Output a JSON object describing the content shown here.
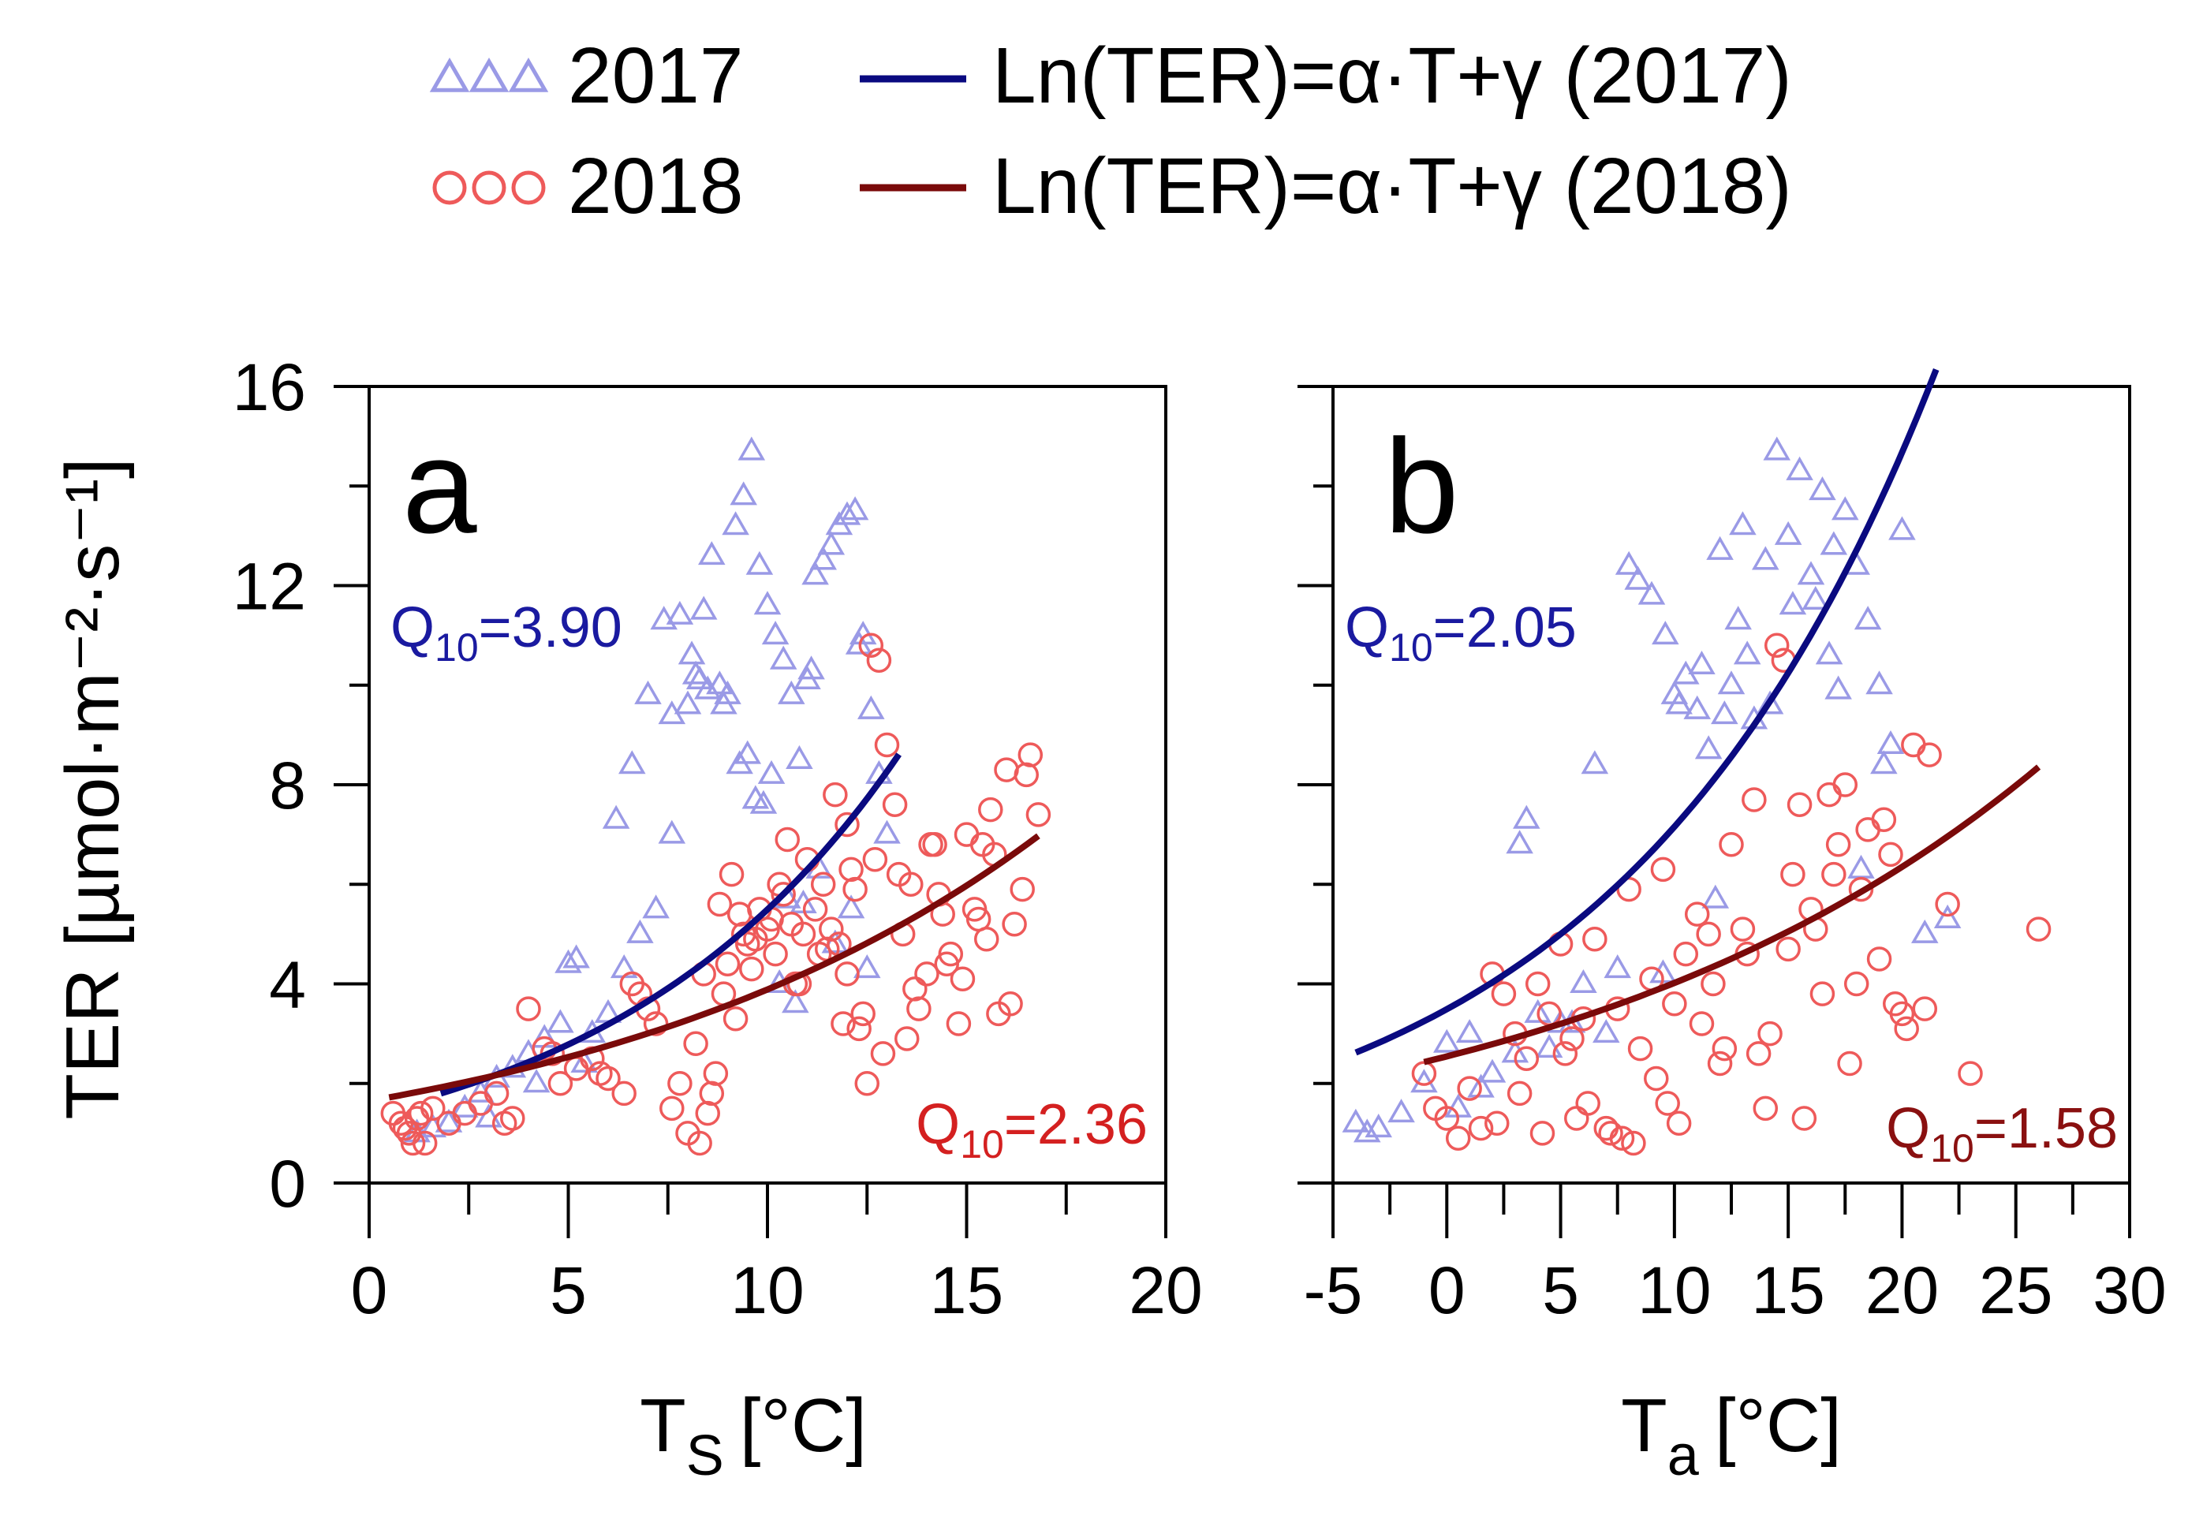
{
  "legend": {
    "items": [
      {
        "marker": "triangle",
        "label": "2017",
        "color": "#9a9ae6"
      },
      {
        "marker": "line",
        "label": "Ln(TER)=α·T+γ (2017)",
        "color": "#0a0a80"
      },
      {
        "marker": "circle",
        "label": "2018",
        "color": "#ee5a5a"
      },
      {
        "marker": "line",
        "label": "Ln(TER)=α·T+γ (2018)",
        "color": "#7a0a0a"
      }
    ]
  },
  "chart_data": [
    {
      "type": "scatter",
      "panel": "a",
      "xlabel": {
        "main": "T",
        "sub": "S",
        "unit": "[°C]"
      },
      "ylabel": "TER [µmol·m⁻²·s⁻¹]",
      "xlim": [
        0,
        20
      ],
      "ylim": [
        0,
        16
      ],
      "xticks": [
        "0",
        "5",
        "10",
        "15",
        "20"
      ],
      "yticks": [
        "0",
        "4",
        "8",
        "12",
        "16"
      ],
      "q10_labels": [
        {
          "main": "Q",
          "sub": "10",
          "value": "=3.90",
          "color": "#1a1aa0"
        },
        {
          "main": "Q",
          "sub": "10",
          "value": "=2.36",
          "color": "#d42020"
        }
      ],
      "series": [
        {
          "name": "2017",
          "marker": "triangle",
          "color": "#9a9ae6",
          "x": [
            1.2,
            1.6,
            2.0,
            2.4,
            2.8,
            3.2,
            3.6,
            4.0,
            4.4,
            4.8,
            5.2,
            5.6,
            6.0,
            6.4,
            6.8,
            7.2,
            7.6,
            8.0,
            8.2,
            8.4,
            8.6,
            8.8,
            9.0,
            9.2,
            9.4,
            9.6,
            9.8,
            10.0,
            10.2,
            10.4,
            10.6,
            10.8,
            11.0,
            11.2,
            11.4,
            11.6,
            11.8,
            12.0,
            12.2,
            12.4,
            12.6,
            12.8,
            13.0,
            5.0,
            6.2,
            6.6,
            7.0,
            7.4,
            7.8,
            8.1,
            8.5,
            8.9,
            9.3,
            9.7,
            10.1,
            10.5,
            10.9,
            11.3,
            11.7,
            12.1,
            12.5,
            9.5,
            9.9,
            10.3,
            10.7,
            11.1,
            12.3,
            7.6,
            8.3,
            3.0,
            4.2,
            5.4
          ],
          "y": [
            1.0,
            1.1,
            1.2,
            1.5,
            1.8,
            2.1,
            2.3,
            2.6,
            2.9,
            3.2,
            4.5,
            3.0,
            3.4,
            4.3,
            5.0,
            5.5,
            7.0,
            9.6,
            10.2,
            11.5,
            12.6,
            10.0,
            9.8,
            13.2,
            13.8,
            14.7,
            12.4,
            11.6,
            11.0,
            10.5,
            9.8,
            8.5,
            10.1,
            12.2,
            12.5,
            12.8,
            13.2,
            13.4,
            13.5,
            11.0,
            9.5,
            8.2,
            7.0,
            4.4,
            7.3,
            8.4,
            9.8,
            11.3,
            11.4,
            10.6,
            9.9,
            9.6,
            8.4,
            7.7,
            8.2,
            5.7,
            5.6,
            6.3,
            4.8,
            5.5,
            4.3,
            8.6,
            7.6,
            4.0,
            3.6,
            10.3,
            10.8,
            9.4,
            10.1,
            1.3,
            2.0,
            2.4
          ]
        },
        {
          "name": "2018",
          "marker": "circle",
          "color": "#ee5a5a",
          "x": [
            0.6,
            0.8,
            1.0,
            1.2,
            1.4,
            1.6,
            2.0,
            2.4,
            2.8,
            3.2,
            3.6,
            4.0,
            4.4,
            4.8,
            5.2,
            5.6,
            6.0,
            6.4,
            6.8,
            7.2,
            7.6,
            8.0,
            8.2,
            8.4,
            8.6,
            8.8,
            9.0,
            9.2,
            9.4,
            9.6,
            9.8,
            10.0,
            10.2,
            10.4,
            10.6,
            10.8,
            11.0,
            11.2,
            11.4,
            11.6,
            11.8,
            12.0,
            12.2,
            12.4,
            12.6,
            12.8,
            13.0,
            13.2,
            13.4,
            13.6,
            13.8,
            14.0,
            14.2,
            14.4,
            14.6,
            14.8,
            15.0,
            15.2,
            15.4,
            15.6,
            15.8,
            16.0,
            16.2,
            16.4,
            16.6,
            16.8,
            0.9,
            1.1,
            1.3,
            3.4,
            4.6,
            5.8,
            6.6,
            7.0,
            7.8,
            8.5,
            8.7,
            8.9,
            9.1,
            9.3,
            9.7,
            10.1,
            10.5,
            10.9,
            11.3,
            11.7,
            12.1,
            12.5,
            12.9,
            13.3,
            13.7,
            14.1,
            14.5,
            14.9,
            15.3,
            15.7,
            16.1,
            16.5,
            10.3,
            10.7,
            11.5,
            12.3,
            12.7,
            13.5,
            14.3,
            15.5,
            8.3,
            9.5,
            11.9,
            12.0
          ],
          "y": [
            1.4,
            1.2,
            1.0,
            1.3,
            0.8,
            1.5,
            1.2,
            1.4,
            1.6,
            1.8,
            1.3,
            3.5,
            2.7,
            2.0,
            2.3,
            2.5,
            2.1,
            1.8,
            3.8,
            3.2,
            1.5,
            1.0,
            2.8,
            4.2,
            1.8,
            5.6,
            4.4,
            3.3,
            5.0,
            4.3,
            5.5,
            5.1,
            4.6,
            5.8,
            5.2,
            4.0,
            6.5,
            5.5,
            6.0,
            5.1,
            4.8,
            7.2,
            5.9,
            3.4,
            10.8,
            10.5,
            8.8,
            7.6,
            5.0,
            6.0,
            3.5,
            4.2,
            6.8,
            5.4,
            4.6,
            3.2,
            7.0,
            5.5,
            6.8,
            7.5,
            3.4,
            8.3,
            5.2,
            5.9,
            8.6,
            7.4,
            1.1,
            0.8,
            1.4,
            1.2,
            2.6,
            2.2,
            4.0,
            3.5,
            2.0,
            1.4,
            2.2,
            3.8,
            6.2,
            5.4,
            4.9,
            5.3,
            6.9,
            5.0,
            4.6,
            7.8,
            6.3,
            2.0,
            2.6,
            6.2,
            3.9,
            6.8,
            4.4,
            4.1,
            5.3,
            6.6,
            3.6,
            8.2,
            6.0,
            4.0,
            4.7,
            3.1,
            6.5,
            2.9,
            5.8,
            4.9,
            0.8,
            4.8,
            3.2,
            4.2
          ]
        },
        {
          "name": "Ln(TER)=α·T+γ (2017)",
          "type": "line",
          "color": "#0a0a80",
          "fit": {
            "a": 1.8,
            "q10": 3.9,
            "x0": 1.8,
            "x1": 13.3
          }
        },
        {
          "name": "Ln(TER)=α·T+γ (2018)",
          "type": "line",
          "color": "#7a0a0a",
          "fit": {
            "a": 1.72,
            "q10": 2.36,
            "x0": 0.5,
            "x1": 16.8
          }
        }
      ]
    },
    {
      "type": "scatter",
      "panel": "b",
      "xlabel": {
        "main": "T",
        "sub": "a",
        "unit": "[°C]"
      },
      "xlim": [
        -5,
        30
      ],
      "ylim": [
        0,
        16
      ],
      "xticks": [
        "-5",
        "0",
        "5",
        "10",
        "15",
        "20",
        "25",
        "30"
      ],
      "q10_labels": [
        {
          "main": "Q",
          "sub": "10",
          "value": "=2.05",
          "color": "#1a1aa0"
        },
        {
          "main": "Q",
          "sub": "10",
          "value": "=1.58",
          "color": "#8a1010"
        }
      ],
      "series": [
        {
          "name": "2017",
          "marker": "triangle",
          "color": "#9a9ae6",
          "x": [
            -4.0,
            -3.5,
            -3.0,
            -2.0,
            -1.0,
            0.0,
            1.0,
            2.0,
            3.0,
            3.5,
            4.0,
            5.0,
            6.0,
            6.5,
            7.0,
            8.0,
            9.0,
            9.5,
            10.0,
            10.5,
            11.0,
            11.5,
            12.0,
            12.5,
            13.0,
            13.5,
            14.0,
            14.5,
            15.0,
            15.5,
            16.0,
            16.5,
            17.0,
            17.5,
            18.0,
            18.5,
            19.0,
            19.5,
            20.0,
            21.0,
            22.0,
            3.2,
            9.6,
            10.2,
            11.2,
            12.2,
            13.2,
            14.2,
            15.2,
            16.2,
            17.2,
            18.2,
            19.2,
            8.4,
            12.8,
            16.8,
            0.5,
            1.5,
            4.5,
            5.5,
            7.5,
            11.8
          ],
          "y": [
            1.2,
            1.0,
            1.1,
            1.4,
            2.0,
            2.8,
            3.0,
            2.2,
            2.6,
            7.3,
            3.4,
            3.2,
            4.0,
            8.4,
            3.0,
            12.4,
            11.8,
            4.2,
            9.8,
            10.2,
            9.5,
            8.7,
            12.7,
            10.0,
            13.2,
            9.3,
            12.5,
            14.7,
            13.0,
            14.3,
            12.2,
            13.9,
            12.8,
            13.5,
            12.4,
            11.3,
            10.0,
            8.8,
            13.1,
            5.0,
            5.3,
            6.8,
            11.0,
            9.6,
            10.4,
            9.4,
            10.6,
            9.6,
            11.6,
            11.7,
            9.9,
            6.3,
            8.4,
            12.1,
            11.3,
            10.6,
            1.5,
            1.9,
            2.7,
            3.2,
            4.3,
            5.7
          ]
        },
        {
          "name": "2018",
          "marker": "circle",
          "color": "#ee5a5a",
          "x": [
            -1.0,
            -0.5,
            0.0,
            0.5,
            1.0,
            1.5,
            2.0,
            2.5,
            3.0,
            3.5,
            4.0,
            4.5,
            5.0,
            5.5,
            6.0,
            6.5,
            7.0,
            7.5,
            8.0,
            8.5,
            9.0,
            9.5,
            10.0,
            10.5,
            11.0,
            11.5,
            12.0,
            12.5,
            13.0,
            13.5,
            14.0,
            14.5,
            15.0,
            15.5,
            16.0,
            16.5,
            17.0,
            17.5,
            18.0,
            18.5,
            19.0,
            19.5,
            20.0,
            20.5,
            21.0,
            22.0,
            23.0,
            26.0,
            2.2,
            3.2,
            4.2,
            5.2,
            6.2,
            7.2,
            8.2,
            9.2,
            10.2,
            11.2,
            12.2,
            13.2,
            14.2,
            15.2,
            16.2,
            17.2,
            18.2,
            19.2,
            20.2,
            21.2,
            5.7,
            7.7,
            9.7,
            11.7,
            13.7,
            15.7,
            17.7,
            19.7,
            14.8,
            16.8
          ],
          "y": [
            2.2,
            1.5,
            1.3,
            0.9,
            1.9,
            1.1,
            4.2,
            3.8,
            3.0,
            2.5,
            4.0,
            3.4,
            4.8,
            2.9,
            3.3,
            4.9,
            1.1,
            3.5,
            5.9,
            2.7,
            4.1,
            6.3,
            3.6,
            4.6,
            5.4,
            5.0,
            2.4,
            6.8,
            5.1,
            7.7,
            1.5,
            10.8,
            4.7,
            7.6,
            5.5,
            3.8,
            6.2,
            8.0,
            4.0,
            7.1,
            4.5,
            6.6,
            3.4,
            8.8,
            3.5,
            5.6,
            2.2,
            5.1,
            1.2,
            1.8,
            1.0,
            2.6,
            1.6,
            1.0,
            0.8,
            2.1,
            1.2,
            3.2,
            2.7,
            4.6,
            3.0,
            6.2,
            5.1,
            6.8,
            5.9,
            7.3,
            3.1,
            8.6,
            1.3,
            0.9,
            1.6,
            4.0,
            2.6,
            1.3,
            2.4,
            3.6,
            10.5,
            7.8
          ]
        },
        {
          "name": "Ln(TER)=α·T+γ (2017)",
          "type": "line",
          "color": "#0a0a80",
          "fit": {
            "a": 2.62,
            "q10": 2.05,
            "x0": -4.0,
            "x1": 21.5
          }
        },
        {
          "name": "Ln(TER)=α·T+γ (2018)",
          "type": "line",
          "color": "#7a0a0a",
          "fit": {
            "a": 2.43,
            "q10": 1.58,
            "x0": -1.0,
            "x1": 26.0
          }
        }
      ]
    }
  ],
  "panel_labels": [
    "a",
    "b"
  ]
}
